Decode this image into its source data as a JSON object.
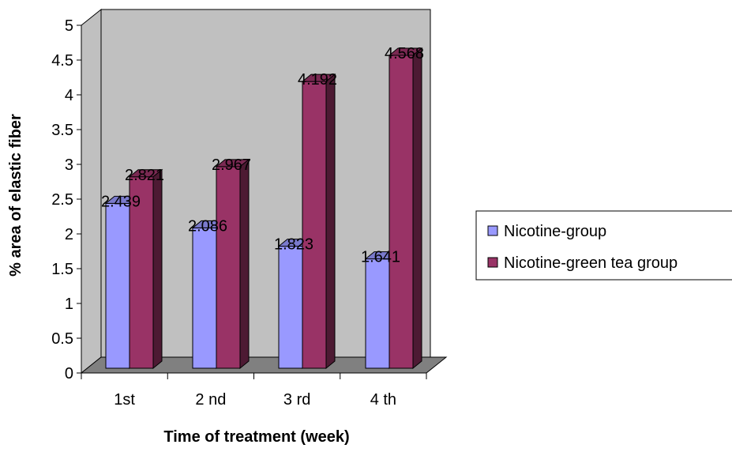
{
  "chart_data": {
    "type": "bar",
    "categories": [
      "1st",
      "2 nd",
      "3 rd",
      "4 th"
    ],
    "series": [
      {
        "name": "Nicotine-group",
        "values": [
          2.439,
          2.086,
          1.823,
          1.641
        ],
        "labels": [
          "2.439",
          "2.086",
          "1.823",
          "1.641"
        ],
        "color": "#9999ff",
        "side_color": "#4d4d80",
        "top_color": "#7a7acc"
      },
      {
        "name": "Nicotine-green tea group",
        "values": [
          2.821,
          2.967,
          4.192,
          4.568
        ],
        "labels": [
          "2.821",
          "2.967",
          "4.192",
          "4.568"
        ],
        "color": "#993366",
        "side_color": "#4d1a33",
        "top_color": "#7a2952"
      }
    ],
    "title": "",
    "xlabel": "Time of treatment (week)",
    "ylabel": "%  area of elastic fiber",
    "ylim": [
      0,
      5
    ],
    "yticks": [
      "0",
      "0.5",
      "1",
      "1.5",
      "2",
      "2.5",
      "3",
      "3.5",
      "4",
      "4.5",
      "5"
    ],
    "grid": false,
    "legend_position": "right",
    "wall_color": "#c0c0c0",
    "floor_color": "#808080"
  }
}
